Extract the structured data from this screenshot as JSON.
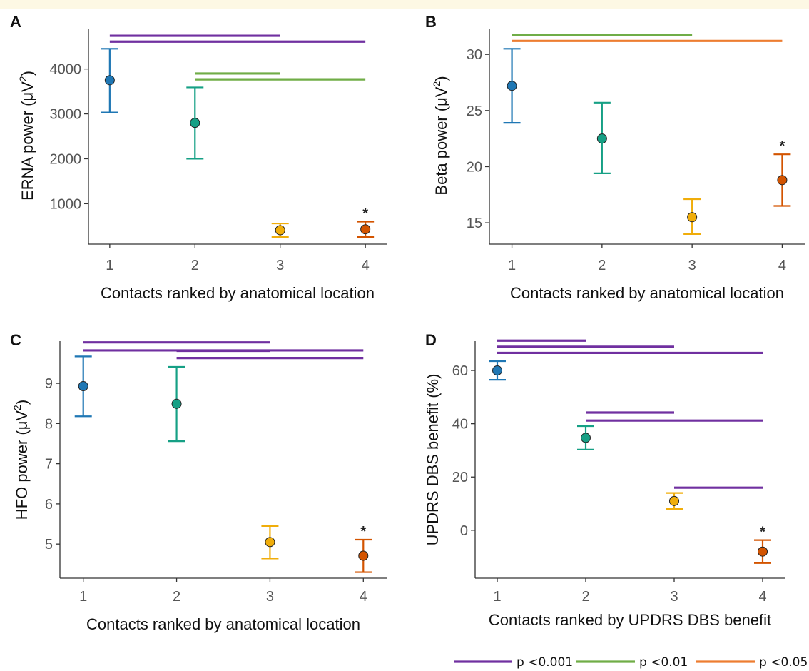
{
  "legend": [
    {
      "label": "p <0.001",
      "color": "#7030a0"
    },
    {
      "label": "p <0.01",
      "color": "#70ad47"
    },
    {
      "label": "p <0.05",
      "color": "#ed7d31"
    }
  ],
  "group_colors": [
    "#1f77b4",
    "#16a085",
    "#f0ad0a",
    "#d35400"
  ],
  "chart_data": [
    {
      "type": "scatter",
      "panel": "A",
      "xlabel": "Contacts ranked by anatomical location",
      "ylabel_main": "ERNA power (μV",
      "ylabel_sup": "2",
      "ylabel_end": ")",
      "xlim": [
        0.75,
        4.25
      ],
      "ylim": [
        100,
        4900
      ],
      "xticks": [
        1,
        2,
        3,
        4
      ],
      "yticks": [
        1000,
        2000,
        3000,
        4000
      ],
      "categories": [
        "1",
        "2",
        "3",
        "4"
      ],
      "points": [
        {
          "x": 1,
          "mean": 3750,
          "low": 3030,
          "high": 4450
        },
        {
          "x": 2,
          "mean": 2800,
          "low": 2000,
          "high": 3590
        },
        {
          "x": 3,
          "mean": 410,
          "low": 260,
          "high": 560
        },
        {
          "x": 4,
          "mean": 430,
          "low": 260,
          "high": 600
        }
      ],
      "asterisk_x": 4,
      "sig_bars": [
        {
          "from": 1,
          "to": 3,
          "y": 4740,
          "p": "p <0.001"
        },
        {
          "from": 1,
          "to": 4,
          "y": 4610,
          "p": "p <0.001"
        },
        {
          "from": 2,
          "to": 3,
          "y": 3900,
          "p": "p <0.01"
        },
        {
          "from": 2,
          "to": 4,
          "y": 3770,
          "p": "p <0.01"
        }
      ]
    },
    {
      "type": "scatter",
      "panel": "B",
      "xlabel": "Contacts ranked by anatomical location",
      "ylabel_main": "Beta power (μV",
      "ylabel_sup": "2",
      "ylabel_end": ")",
      "xlim": [
        0.75,
        4.25
      ],
      "ylim": [
        13.1,
        32.3
      ],
      "xticks": [
        1,
        2,
        3,
        4
      ],
      "yticks": [
        15,
        20,
        25,
        30
      ],
      "categories": [
        "1",
        "2",
        "3",
        "4"
      ],
      "points": [
        {
          "x": 1,
          "mean": 27.2,
          "low": 23.9,
          "high": 30.5
        },
        {
          "x": 2,
          "mean": 22.5,
          "low": 19.4,
          "high": 25.7
        },
        {
          "x": 3,
          "mean": 15.5,
          "low": 14.0,
          "high": 17.1
        },
        {
          "x": 4,
          "mean": 18.8,
          "low": 16.5,
          "high": 21.1
        }
      ],
      "asterisk_x": 4,
      "sig_bars": [
        {
          "from": 1,
          "to": 3,
          "y": 31.7,
          "p": "p <0.01"
        },
        {
          "from": 1,
          "to": 4,
          "y": 31.2,
          "p": "p <0.05"
        }
      ]
    },
    {
      "type": "scatter",
      "panel": "C",
      "xlabel": "Contacts ranked by anatomical location",
      "ylabel_main": "HFO power (μV",
      "ylabel_sup": "2",
      "ylabel_end": ")",
      "xlim": [
        0.75,
        4.25
      ],
      "ylim": [
        4.15,
        10.05
      ],
      "xticks": [
        1,
        2,
        3,
        4
      ],
      "yticks": [
        5,
        6,
        7,
        8,
        9
      ],
      "categories": [
        "1",
        "2",
        "3",
        "4"
      ],
      "points": [
        {
          "x": 1,
          "mean": 8.93,
          "low": 8.18,
          "high": 9.67
        },
        {
          "x": 2,
          "mean": 8.49,
          "low": 7.56,
          "high": 9.41
        },
        {
          "x": 3,
          "mean": 5.05,
          "low": 4.64,
          "high": 5.45
        },
        {
          "x": 4,
          "mean": 4.71,
          "low": 4.3,
          "high": 5.11
        }
      ],
      "asterisk_x": 4,
      "sig_bars": [
        {
          "from": 1,
          "to": 3,
          "y": 10.02,
          "p": "p <0.001"
        },
        {
          "from": 1,
          "to": 4,
          "y": 9.82,
          "p": "p <0.001"
        },
        {
          "from": 2,
          "to": 3,
          "y": 9.81,
          "p": "p <0.001"
        },
        {
          "from": 2,
          "to": 4,
          "y": 9.63,
          "p": "p <0.001"
        }
      ]
    },
    {
      "type": "scatter",
      "panel": "D",
      "xlabel": "Contacts ranked by UPDRS DBS benefit",
      "ylabel_main": "UPDRS DBS benefit (%)",
      "ylabel_sup": "",
      "ylabel_end": "",
      "xlim": [
        0.75,
        4.25
      ],
      "ylim": [
        -18,
        71
      ],
      "xticks": [
        1,
        2,
        3,
        4
      ],
      "yticks": [
        0,
        20,
        40,
        60
      ],
      "categories": [
        "1",
        "2",
        "3",
        "4"
      ],
      "points": [
        {
          "x": 1,
          "mean": 60,
          "low": 56.5,
          "high": 63.5
        },
        {
          "x": 2,
          "mean": 34.7,
          "low": 30.3,
          "high": 39.1
        },
        {
          "x": 3,
          "mean": 11,
          "low": 8,
          "high": 14
        },
        {
          "x": 4,
          "mean": -8,
          "low": -12.3,
          "high": -3.7
        }
      ],
      "asterisk_x": 4,
      "sig_bars": [
        {
          "from": 1,
          "to": 2,
          "y": 71.2,
          "p": "p <0.001"
        },
        {
          "from": 1,
          "to": 3,
          "y": 68.9,
          "p": "p <0.001"
        },
        {
          "from": 1,
          "to": 4,
          "y": 66.6,
          "p": "p <0.001"
        },
        {
          "from": 2,
          "to": 3,
          "y": 44.2,
          "p": "p <0.001"
        },
        {
          "from": 2,
          "to": 4,
          "y": 41.2,
          "p": "p <0.001"
        },
        {
          "from": 3,
          "to": 4,
          "y": 16.0,
          "p": "p <0.001"
        }
      ]
    }
  ]
}
